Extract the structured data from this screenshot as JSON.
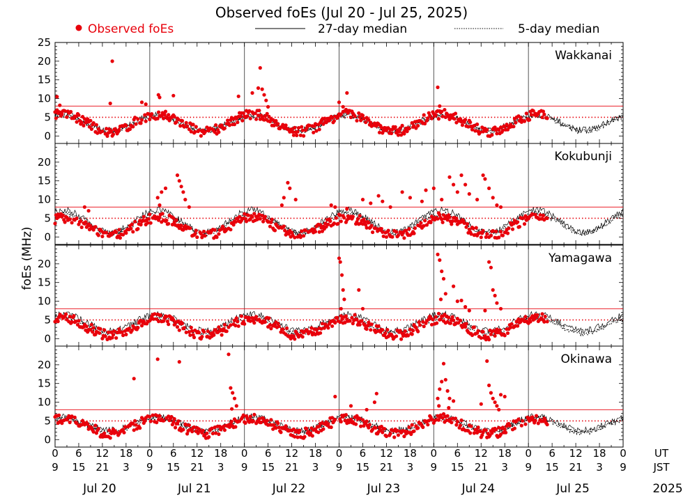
{
  "chart_data": {
    "type": "scatter",
    "title": "Observed foEs (Jul 20 - Jul 25, 2025)",
    "ylabel": "foEs (MHz)",
    "legend": [
      {
        "name": "Observed foEs",
        "style": "red-dot",
        "color": "#e8000b"
      },
      {
        "name": "27-day median",
        "style": "solid-line",
        "color": "#000000"
      },
      {
        "name": "5-day median",
        "style": "dotted-line",
        "color": "#000000"
      }
    ],
    "ylim": [
      -2,
      25
    ],
    "yticks_first_panel": [
      0,
      5,
      10,
      15,
      20,
      25
    ],
    "yticks_other_panels": [
      0,
      5,
      10,
      15,
      20
    ],
    "reference_lines": {
      "solid_red_MHz": 8,
      "dotted_red_MHz": 5
    },
    "x_days": 6,
    "ut_tick_labels": [
      "0",
      "6",
      "12",
      "18",
      "0",
      "6",
      "12",
      "18",
      "0",
      "6",
      "12",
      "18",
      "0",
      "6",
      "12",
      "18",
      "0",
      "6",
      "12",
      "18",
      "0",
      "6",
      "12",
      "18",
      "0"
    ],
    "jst_tick_labels": [
      "9",
      "15",
      "21",
      "3",
      "9",
      "15",
      "21",
      "3",
      "9",
      "15",
      "21",
      "3",
      "9",
      "15",
      "21",
      "3",
      "9",
      "15",
      "21",
      "3",
      "9",
      "15",
      "21",
      "3",
      "9"
    ],
    "ut_label": "UT",
    "jst_label": "JST",
    "day_labels": [
      "Jul 20",
      "Jul 21",
      "Jul 22",
      "Jul 23",
      "Jul 24",
      "Jul 25"
    ],
    "year_label": "2025",
    "observed_end_hour": 125,
    "stations": [
      {
        "name": "Wakkanai",
        "median27_base": 3.6,
        "median27_amp": 2.0,
        "median5_base": 3.3,
        "median5_amp": 2.1,
        "obs_base": 3.5,
        "obs_amp": 2.3,
        "spikes": [
          [
            0.5,
            10.5
          ],
          [
            1.2,
            8.2
          ],
          [
            14.5,
            20.0
          ],
          [
            14.0,
            8.7
          ],
          [
            22.0,
            9.0
          ],
          [
            23.0,
            8.5
          ],
          [
            26.2,
            11.0
          ],
          [
            26.5,
            10.3
          ],
          [
            30.0,
            10.8
          ],
          [
            46.5,
            10.6
          ],
          [
            50.0,
            11.5
          ],
          [
            51.5,
            12.8
          ],
          [
            52.0,
            18.2
          ],
          [
            52.5,
            12.5
          ],
          [
            53.0,
            11.0
          ],
          [
            53.5,
            9.5
          ],
          [
            54.0,
            7.8
          ],
          [
            72.0,
            9.0
          ],
          [
            74.0,
            11.5
          ],
          [
            73.0,
            7.8
          ],
          [
            97.0,
            13.0
          ],
          [
            97.5,
            8.0
          ]
        ]
      },
      {
        "name": "Kokubunji",
        "median27_base": 4.2,
        "median27_amp": 3.0,
        "median5_base": 3.6,
        "median5_amp": 2.6,
        "obs_base": 2.8,
        "obs_amp": 2.4,
        "spikes": [
          [
            7.5,
            8.0
          ],
          [
            8.5,
            7.0
          ],
          [
            26.0,
            10.5
          ],
          [
            27.0,
            12.0
          ],
          [
            28.0,
            13.0
          ],
          [
            26.5,
            8.5
          ],
          [
            31.0,
            16.5
          ],
          [
            31.5,
            15.0
          ],
          [
            32.0,
            13.5
          ],
          [
            32.5,
            12.0
          ],
          [
            33.0,
            10.0
          ],
          [
            34.0,
            8.0
          ],
          [
            59.0,
            14.5
          ],
          [
            59.5,
            13.0
          ],
          [
            58.0,
            10.5
          ],
          [
            61.0,
            10.0
          ],
          [
            57.5,
            8.5
          ],
          [
            70.0,
            8.5
          ],
          [
            71.0,
            8.0
          ],
          [
            74.0,
            7.5
          ],
          [
            78.0,
            10.0
          ],
          [
            80.0,
            9.0
          ],
          [
            82.0,
            11.0
          ],
          [
            83.0,
            9.5
          ],
          [
            85.0,
            8.0
          ],
          [
            88.0,
            12.0
          ],
          [
            90.0,
            10.5
          ],
          [
            93.0,
            9.5
          ],
          [
            94.0,
            12.5
          ],
          [
            96.0,
            13.0
          ],
          [
            98.0,
            10.0
          ],
          [
            100.0,
            16.0
          ],
          [
            101.0,
            14.0
          ],
          [
            102.0,
            12.0
          ],
          [
            103.0,
            16.5
          ],
          [
            104.0,
            14.0
          ],
          [
            105.0,
            11.5
          ],
          [
            107.0,
            10.0
          ],
          [
            108.5,
            16.5
          ],
          [
            109.0,
            15.5
          ],
          [
            110.0,
            13.0
          ],
          [
            111.0,
            10.5
          ],
          [
            112.0,
            8.5
          ],
          [
            113.0,
            8.0
          ]
        ]
      },
      {
        "name": "Yamagawa",
        "median27_base": 4.3,
        "median27_amp": 2.2,
        "median5_base": 3.4,
        "median5_amp": 2.1,
        "obs_base": 3.2,
        "obs_amp": 2.3,
        "spikes": [
          [
            72.0,
            21.5
          ],
          [
            72.3,
            20.5
          ],
          [
            72.7,
            17.0
          ],
          [
            73.0,
            13.0
          ],
          [
            73.3,
            10.5
          ],
          [
            72.5,
            8.0
          ],
          [
            77.0,
            13.0
          ],
          [
            78.0,
            8.0
          ],
          [
            97.0,
            22.5
          ],
          [
            97.5,
            21.0
          ],
          [
            98.0,
            18.0
          ],
          [
            98.5,
            16.0
          ],
          [
            99.0,
            12.0
          ],
          [
            97.8,
            10.5
          ],
          [
            101.0,
            14.0
          ],
          [
            102.0,
            10.0
          ],
          [
            103.0,
            10.2
          ],
          [
            104.0,
            8.5
          ],
          [
            105.0,
            7.5
          ],
          [
            110.0,
            20.5
          ],
          [
            110.5,
            19.0
          ],
          [
            111.0,
            13.0
          ],
          [
            111.5,
            11.5
          ],
          [
            112.0,
            9.5
          ],
          [
            113.0,
            8.0
          ],
          [
            109.0,
            7.5
          ]
        ]
      },
      {
        "name": "Okinawa",
        "median27_base": 4.3,
        "median27_amp": 1.8,
        "median5_base": 3.8,
        "median5_amp": 1.9,
        "obs_base": 3.6,
        "obs_amp": 2.0,
        "spikes": [
          [
            20.0,
            16.3
          ],
          [
            26.0,
            21.5
          ],
          [
            31.5,
            20.8
          ],
          [
            44.0,
            22.8
          ],
          [
            44.5,
            13.8
          ],
          [
            45.0,
            12.5
          ],
          [
            45.5,
            11.0
          ],
          [
            46.0,
            9.0
          ],
          [
            44.8,
            8.2
          ],
          [
            71.0,
            11.5
          ],
          [
            75.0,
            9.0
          ],
          [
            81.5,
            12.3
          ],
          [
            81.0,
            10.0
          ],
          [
            79.0,
            8.0
          ],
          [
            97.0,
            11.0
          ],
          [
            97.5,
            13.5
          ],
          [
            98.0,
            15.5
          ],
          [
            98.5,
            20.3
          ],
          [
            99.0,
            16.0
          ],
          [
            99.5,
            13.0
          ],
          [
            100.0,
            11.0
          ],
          [
            101.0,
            10.3
          ],
          [
            97.3,
            9.0
          ],
          [
            99.8,
            8.5
          ],
          [
            109.5,
            21.0
          ],
          [
            110.0,
            14.5
          ],
          [
            110.5,
            12.5
          ],
          [
            111.0,
            11.0
          ],
          [
            111.5,
            10.0
          ],
          [
            112.0,
            9.0
          ],
          [
            113.0,
            12.0
          ],
          [
            114.0,
            11.5
          ],
          [
            108.0,
            9.5
          ],
          [
            112.5,
            8.0
          ]
        ]
      }
    ]
  }
}
